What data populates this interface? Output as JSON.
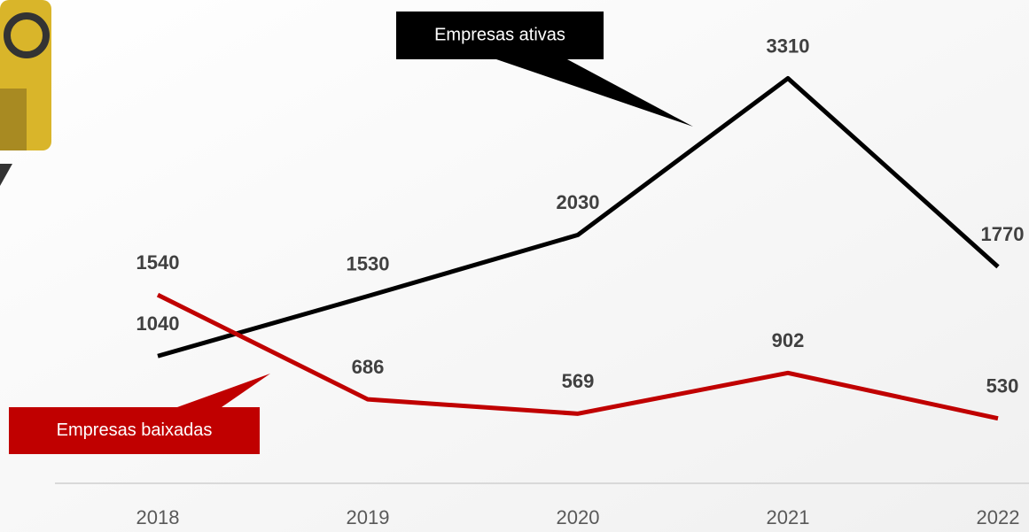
{
  "chart_data": {
    "type": "line",
    "categories": [
      "2018",
      "2019",
      "2020",
      "2021",
      "2022"
    ],
    "series": [
      {
        "name": "Empresas ativas",
        "color": "#000000",
        "values": [
          1040,
          1530,
          2030,
          3310,
          1770
        ]
      },
      {
        "name": "Empresas baixadas",
        "color": "#c00000",
        "values": [
          1540,
          686,
          569,
          902,
          530
        ]
      }
    ],
    "ylim": [
      0,
      3950
    ]
  }
}
